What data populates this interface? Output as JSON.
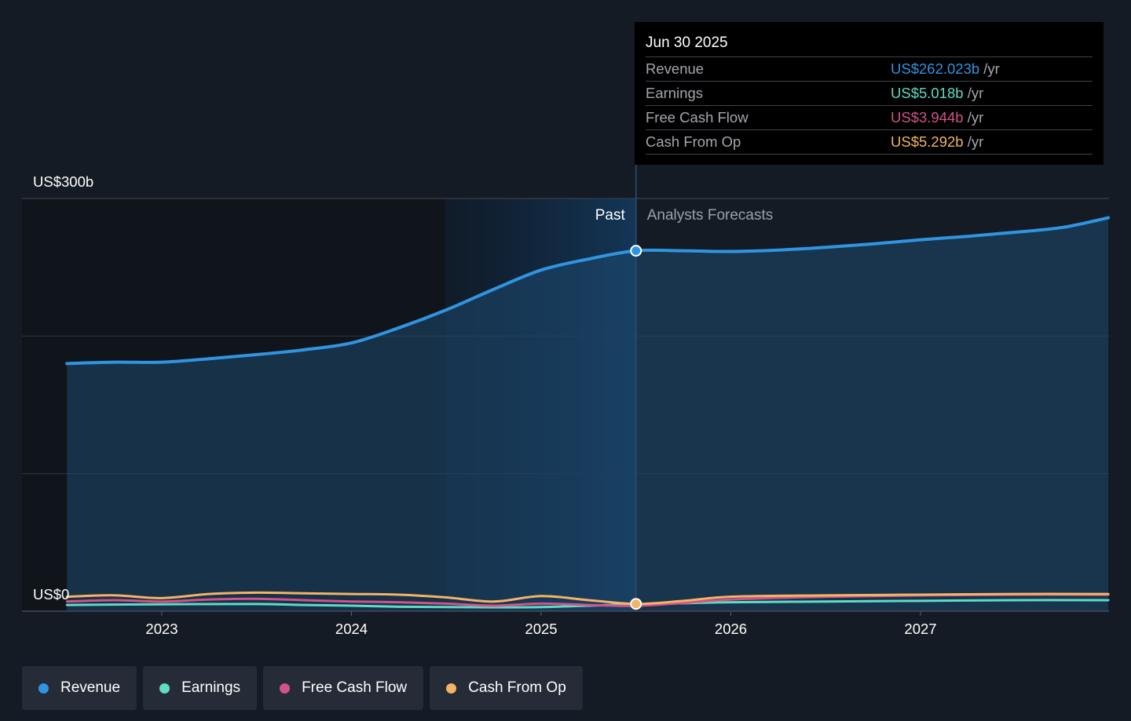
{
  "colors": {
    "revenue": "#2f95e1",
    "earnings": "#5fdcc4",
    "free_cash_flow": "#d3528b",
    "cash_from_op": "#f4b464"
  },
  "tooltip": {
    "date": "Jun 30 2025",
    "unit": "/yr",
    "rows": [
      {
        "label": "Revenue",
        "value": "US$262.023b",
        "color": "#2f95e1"
      },
      {
        "label": "Earnings",
        "value": "US$5.018b",
        "color": "#5fdcc4"
      },
      {
        "label": "Free Cash Flow",
        "value": "US$3.944b",
        "color": "#d3528b"
      },
      {
        "label": "Cash From Op",
        "value": "US$5.292b",
        "color": "#f4b464"
      }
    ]
  },
  "legend": [
    {
      "label": "Revenue",
      "color": "#2f95e1"
    },
    {
      "label": "Earnings",
      "color": "#5fdcc4"
    },
    {
      "label": "Free Cash Flow",
      "color": "#d3528b"
    },
    {
      "label": "Cash From Op",
      "color": "#f4b464"
    }
  ],
  "chart_data": {
    "type": "line",
    "y_label_top": "US$300b",
    "y_label_bottom": "US$0",
    "ylim": [
      0,
      300
    ],
    "past_label": "Past",
    "forecast_label": "Analysts Forecasts",
    "divider_x": 2025.5,
    "x_ticks": [
      "2023",
      "2024",
      "2025",
      "2026",
      "2027"
    ],
    "series": [
      {
        "name": "Revenue",
        "color": "#2f95e1",
        "x": [
          2022.5,
          2022.75,
          2023.0,
          2023.25,
          2023.5,
          2023.75,
          2024.0,
          2024.25,
          2024.5,
          2024.75,
          2025.0,
          2025.25,
          2025.5,
          2025.75,
          2026.0,
          2026.25,
          2026.5,
          2026.75,
          2027.0,
          2027.25,
          2027.5,
          2027.75,
          2027.99
        ],
        "values": [
          180,
          181,
          181,
          183.5,
          186.5,
          190,
          195,
          206,
          219,
          234,
          248,
          256,
          262,
          262,
          261.5,
          262.5,
          264.5,
          267,
          270,
          272.5,
          275.5,
          279,
          286
        ]
      },
      {
        "name": "Earnings",
        "color": "#5fdcc4",
        "x": [
          2022.5,
          2023.0,
          2023.5,
          2023.75,
          2024.0,
          2024.25,
          2024.5,
          2024.75,
          2025.0,
          2025.25,
          2025.5,
          2025.75,
          2026.0,
          2026.5,
          2027.0,
          2027.5,
          2027.99
        ],
        "values": [
          4.5,
          5.0,
          5.2,
          4.5,
          4.0,
          3.2,
          3.0,
          2.8,
          3.0,
          4.0,
          5.0,
          5.8,
          6.5,
          7.0,
          7.5,
          8.0,
          8.0
        ]
      },
      {
        "name": "Free Cash Flow",
        "color": "#d3528b",
        "x": [
          2022.5,
          2022.75,
          2023.0,
          2023.25,
          2023.5,
          2023.75,
          2024.0,
          2024.25,
          2024.5,
          2024.75,
          2025.0,
          2025.25,
          2025.5,
          2025.75,
          2026.0,
          2026.5,
          2027.0,
          2027.5,
          2027.99
        ],
        "values": [
          7.0,
          8.0,
          7.0,
          8.5,
          9.0,
          8.0,
          7.0,
          6.5,
          5.5,
          4.0,
          5.5,
          4.5,
          3.9,
          6.0,
          8.5,
          10.5,
          11.5,
          12.0,
          12.0
        ]
      },
      {
        "name": "Cash From Op",
        "color": "#f4b464",
        "x": [
          2022.5,
          2022.75,
          2023.0,
          2023.25,
          2023.5,
          2023.75,
          2024.0,
          2024.25,
          2024.5,
          2024.75,
          2025.0,
          2025.25,
          2025.5,
          2025.75,
          2026.0,
          2026.5,
          2027.0,
          2027.5,
          2027.99
        ],
        "values": [
          10.5,
          11.5,
          9.5,
          12.5,
          13.5,
          13.0,
          12.5,
          12.0,
          10.0,
          7.0,
          11.0,
          8.0,
          5.3,
          7.5,
          10.5,
          11.5,
          12.0,
          12.5,
          12.5
        ]
      }
    ]
  }
}
